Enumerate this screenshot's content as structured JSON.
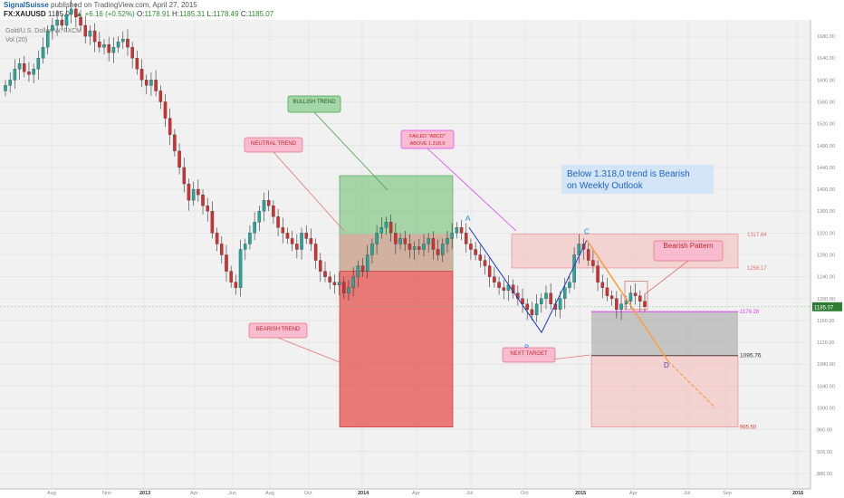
{
  "header": {
    "author": "SignalSuisse",
    "published": " published on TradingView.com, April 27, 2015",
    "symbol": "FX:XAUUSD",
    "last": "1185.07",
    "change": "▲ +6.16 (+0.52%)",
    "o_label": "O:",
    "o_value": "1178.91",
    "h_label": "H:",
    "h_value": "1185.31",
    "l_label": "L:",
    "l_value": "1178.49",
    "c_label": "C:",
    "c_value": "1185.07"
  },
  "legend": {
    "title": "Gold/U.S. Dollar, W, FXCM",
    "vol": "Vol (20)"
  },
  "watermark": "XAUUSD, W",
  "annotations": {
    "bullish": "BULLISH TREND",
    "neutral": "NEUTRAL TREND",
    "bearish": "BEARISH TREND",
    "failed1": "FAILED \"ABCD\"",
    "failed2": "ABOVE 1.318,0",
    "outlook1": "Below 1.318,0 trend is Bearish",
    "outlook2": "on Weekly Outlook",
    "pattern": "Bearish Pattern",
    "target": "NEXT TARGET",
    "pt_a": "A",
    "pt_b": "B",
    "pt_c": "C",
    "pt_d": "D"
  },
  "levels": {
    "l1": "1317.64",
    "l2": "1256.17",
    "l3": "1176.28",
    "l4": "1095.76",
    "l5": "965.50",
    "price_tag": "1185.07"
  },
  "colors": {
    "up": "#26a69a",
    "down": "#d32f2f",
    "bull_zone": "#66bb6a",
    "bear_zone": "#e53935",
    "neutral_zone": "#ef9a9a",
    "abcd_line": "#1e3cc8",
    "projection": "#f5a142",
    "magenta": "#e040fb",
    "price_tag": "#2e7d32"
  },
  "chart_data": {
    "type": "candlestick",
    "title": "Gold/U.S. Dollar, W, FXCM",
    "ylim": [
      860,
      1700
    ],
    "y_ticks": [
      880,
      920,
      960,
      1000,
      1040,
      1080,
      1120,
      1160,
      1200,
      1240,
      1280,
      1320,
      1360,
      1400,
      1440,
      1480,
      1520,
      1560,
      1600,
      1640,
      1680
    ],
    "x_ticks": [
      "Aug",
      "Nov",
      "2013",
      "Apr",
      "Jun",
      "Aug",
      "Oct",
      "2014",
      "Apr",
      "Jul",
      "Oct",
      "2015",
      "Apr",
      "Jul",
      "Sep",
      "2016"
    ],
    "closes": [
      1590,
      1600,
      1620,
      1630,
      1615,
      1610,
      1620,
      1640,
      1660,
      1690,
      1700,
      1710,
      1700,
      1720,
      1730,
      1715,
      1700,
      1680,
      1690,
      1670,
      1660,
      1665,
      1650,
      1660,
      1670,
      1675,
      1660,
      1640,
      1620,
      1600,
      1590,
      1600,
      1580,
      1560,
      1530,
      1500,
      1470,
      1440,
      1410,
      1380,
      1400,
      1390,
      1370,
      1360,
      1320,
      1300,
      1280,
      1250,
      1230,
      1220,
      1290,
      1300,
      1320,
      1340,
      1360,
      1380,
      1370,
      1350,
      1330,
      1320,
      1310,
      1300,
      1290,
      1320,
      1310,
      1300,
      1270,
      1250,
      1240,
      1230,
      1225,
      1230,
      1210,
      1220,
      1240,
      1260,
      1250,
      1280,
      1300,
      1320,
      1330,
      1340,
      1320,
      1300,
      1310,
      1300,
      1290,
      1295,
      1290,
      1300,
      1310,
      1290,
      1280,
      1300,
      1310,
      1320,
      1330,
      1320,
      1300,
      1290,
      1280,
      1270,
      1260,
      1240,
      1230,
      1220,
      1215,
      1225,
      1210,
      1200,
      1190,
      1180,
      1170,
      1190,
      1200,
      1210,
      1190,
      1180,
      1200,
      1220,
      1230,
      1280,
      1300,
      1290,
      1270,
      1260,
      1230,
      1220,
      1205,
      1200,
      1180,
      1190,
      1195,
      1210,
      1205,
      1195,
      1185
    ],
    "abcd": {
      "A": 1330,
      "B": 1138,
      "C": 1307,
      "D": 1085
    },
    "zones": [
      {
        "name": "BULLISH TREND",
        "from": 1250,
        "to": 1425
      },
      {
        "name": "NEUTRAL TREND",
        "from": 1250,
        "to": 1318
      },
      {
        "name": "BEARISH TREND",
        "from": 965,
        "to": 1250
      }
    ],
    "levels": [
      1317.64,
      1256.17,
      1176.28,
      1095.76,
      965.5
    ]
  }
}
